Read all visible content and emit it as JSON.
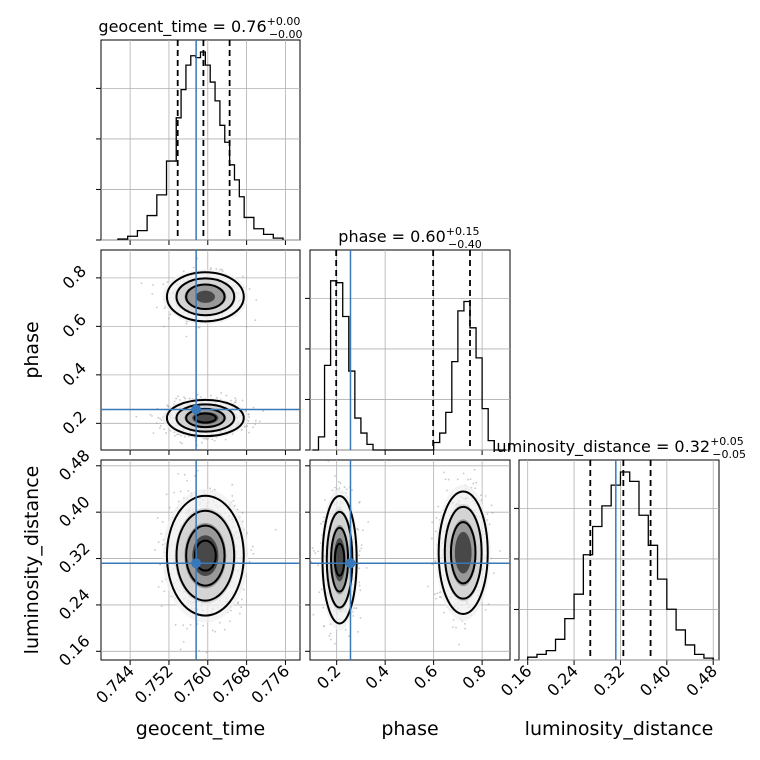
{
  "chart_data": {
    "type": "corner",
    "parameters": [
      "geocent_time",
      "phase",
      "luminosity_distance"
    ],
    "truth_color": "#3878b8",
    "titles": [
      {
        "text": "geocent_time = 0.76",
        "sup": "+0.00",
        "sub": "−0.00"
      },
      {
        "text": "phase = 0.60",
        "sup": "+0.15",
        "sub": "−0.40"
      },
      {
        "text": "luminosity_distance = 0.32",
        "sup": "+0.05",
        "sub": "−0.05"
      }
    ],
    "axes": {
      "geocent_time": {
        "range": [
          0.738,
          0.779
        ],
        "ticks": [
          0.744,
          0.752,
          0.76,
          0.768,
          0.776
        ],
        "tick_labels": [
          "0.744",
          "0.752",
          "0.760",
          "0.768",
          "0.776"
        ]
      },
      "phase": {
        "range": [
          0.09,
          0.915
        ],
        "ticks": [
          0.2,
          0.4,
          0.6,
          0.8
        ],
        "tick_labels": [
          "0.2",
          "0.4",
          "0.6",
          "0.8"
        ]
      },
      "luminosity_distance": {
        "range": [
          0.145,
          0.49
        ],
        "ticks": [
          0.16,
          0.24,
          0.32,
          0.4,
          0.48
        ],
        "tick_labels": [
          "0.16",
          "0.24",
          "0.32",
          "0.40",
          "0.48"
        ]
      }
    },
    "truths": {
      "geocent_time": 0.7576,
      "phase": 0.257,
      "luminosity_distance": 0.312
    },
    "histograms": [
      {
        "param": "geocent_time",
        "bin_edges": [
          0.7415,
          0.7435,
          0.7455,
          0.7475,
          0.7495,
          0.7515,
          0.7535,
          0.7545,
          0.7555,
          0.7565,
          0.7575,
          0.7585,
          0.7595,
          0.7605,
          0.7615,
          0.7625,
          0.7635,
          0.7645,
          0.7655,
          0.7665,
          0.7675,
          0.7695,
          0.7715,
          0.7735,
          0.7755
        ],
        "counts": [
          0.005,
          0.02,
          0.05,
          0.13,
          0.24,
          0.42,
          0.65,
          0.8,
          0.93,
          0.98,
          0.97,
          1.0,
          0.93,
          0.84,
          0.74,
          0.61,
          0.52,
          0.4,
          0.32,
          0.23,
          0.12,
          0.06,
          0.03,
          0.01
        ],
        "quantiles": [
          0.7538,
          0.7591,
          0.7645
        ]
      },
      {
        "param": "phase",
        "bin_edges": [
          0.1,
          0.125,
          0.15,
          0.175,
          0.2,
          0.225,
          0.25,
          0.275,
          0.3,
          0.325,
          0.35,
          0.375,
          0.4,
          0.425,
          0.45,
          0.475,
          0.5,
          0.525,
          0.55,
          0.575,
          0.6,
          0.625,
          0.65,
          0.675,
          0.7,
          0.725,
          0.75,
          0.775,
          0.8,
          0.825,
          0.85,
          0.875,
          0.9
        ],
        "counts": [
          0.0,
          0.07,
          0.45,
          0.9,
          0.89,
          0.71,
          0.42,
          0.17,
          0.09,
          0.03,
          0.0,
          0.0,
          0.0,
          0.0,
          0.0,
          0.0,
          0.0,
          0.0,
          0.0,
          0.0,
          0.04,
          0.09,
          0.2,
          0.47,
          0.74,
          0.79,
          0.65,
          0.49,
          0.22,
          0.05,
          0.0,
          0.0
        ],
        "quantiles": [
          0.198,
          0.598,
          0.75
        ]
      },
      {
        "param": "luminosity_distance",
        "bin_edges": [
          0.16,
          0.176,
          0.192,
          0.208,
          0.224,
          0.24,
          0.256,
          0.272,
          0.288,
          0.304,
          0.32,
          0.336,
          0.352,
          0.368,
          0.384,
          0.4,
          0.416,
          0.432,
          0.448,
          0.464,
          0.48
        ],
        "counts": [
          0.015,
          0.03,
          0.05,
          0.11,
          0.22,
          0.35,
          0.56,
          0.71,
          0.82,
          0.93,
          1.0,
          0.95,
          0.77,
          0.61,
          0.43,
          0.27,
          0.16,
          0.08,
          0.03,
          0.01
        ],
        "quantiles": [
          0.268,
          0.325,
          0.372
        ]
      }
    ],
    "density_2d": [
      {
        "x": "geocent_time",
        "y": "phase",
        "modes": [
          {
            "cx": 0.7595,
            "cy": 0.722,
            "sx": 0.0036,
            "sy": 0.046,
            "w": 0.55
          },
          {
            "cx": 0.7595,
            "cy": 0.222,
            "sx": 0.0036,
            "sy": 0.034,
            "w": 1.0
          }
        ]
      },
      {
        "x": "geocent_time",
        "y": "luminosity_distance",
        "modes": [
          {
            "cx": 0.7595,
            "cy": 0.325,
            "sx": 0.0036,
            "sy": 0.047,
            "w": 1.0
          }
        ]
      },
      {
        "x": "phase",
        "y": "luminosity_distance",
        "modes": [
          {
            "cx": 0.212,
            "cy": 0.318,
            "sx": 0.032,
            "sy": 0.05,
            "w": 1.0
          },
          {
            "cx": 0.722,
            "cy": 0.33,
            "sx": 0.046,
            "sy": 0.048,
            "w": 0.72
          }
        ]
      }
    ],
    "contour_levels": [
      0.12,
      0.39,
      0.61,
      0.86
    ],
    "grid": true
  }
}
